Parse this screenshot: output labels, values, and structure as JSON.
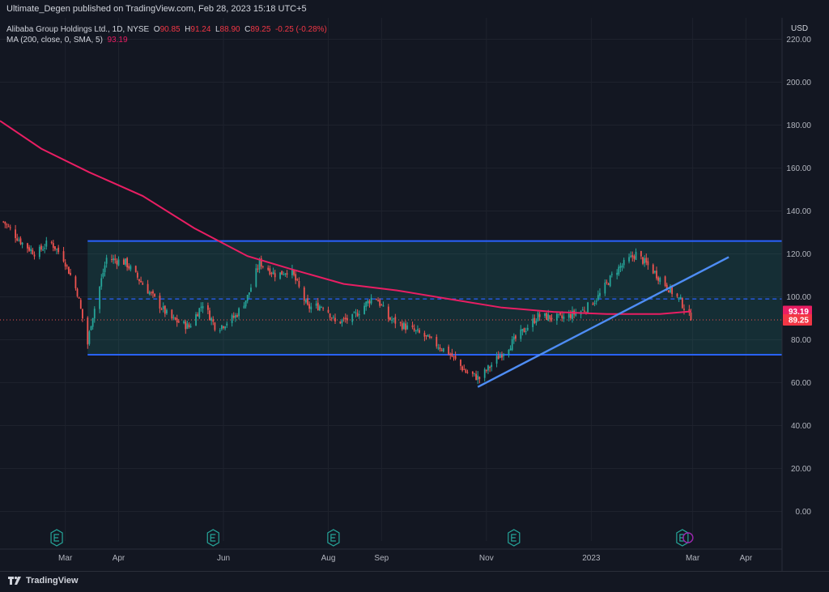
{
  "header": {
    "published": "Ultimate_Degen published on TradingView.com, Feb 28, 2023 15:18 UTC+5"
  },
  "legend": {
    "symbol": "Alibaba Group Holdings Ltd., 1D, NYSE",
    "o_label": "O",
    "o_value": "90.85",
    "h_label": "H",
    "h_value": "91.24",
    "l_label": "L",
    "l_value": "88.90",
    "c_label": "C",
    "c_value": "89.25",
    "change": "-0.25 (-0.28%)",
    "ma_label": "MA (200, close, 0, SMA, 5)",
    "ma_value": "93.19"
  },
  "price_axis": {
    "currency": "USD"
  },
  "price_badges": {
    "ma": "93.19",
    "last": "89.25"
  },
  "footer": {
    "brand": "TradingView"
  },
  "colors": {
    "background": "#131722",
    "up": "#26a69a",
    "down": "#ef5350",
    "ma": "#e91e63",
    "channel": "#2962ff",
    "trendline": "#4e8df5"
  },
  "chart_data": {
    "type": "candlestick",
    "y_range": [
      -10,
      230
    ],
    "y_ticks": [
      "0.00",
      "20.00",
      "40.00",
      "60.00",
      "80.00",
      "100.00",
      "120.00",
      "140.00",
      "160.00",
      "180.00",
      "200.00",
      "220.00"
    ],
    "x_range": [
      "2022-01-22",
      "2023-04-22"
    ],
    "x_ticks": [
      {
        "label": "Mar",
        "date": "2022-03-01"
      },
      {
        "label": "Apr",
        "date": "2022-04-01"
      },
      {
        "label": "Jun",
        "date": "2022-06-01"
      },
      {
        "label": "Aug",
        "date": "2022-08-01"
      },
      {
        "label": "Sep",
        "date": "2022-09-01"
      },
      {
        "label": "Nov",
        "date": "2022-11-01"
      },
      {
        "label": "2023",
        "date": "2023-01-01"
      },
      {
        "label": "Mar",
        "date": "2023-03-01"
      },
      {
        "label": "Apr",
        "date": "2023-04-01"
      }
    ],
    "price_keypoints": [
      [
        "2022-01-24",
        135
      ],
      [
        "2022-02-04",
        125
      ],
      [
        "2022-02-12",
        120
      ],
      [
        "2022-02-20",
        126
      ],
      [
        "2022-02-28",
        118
      ],
      [
        "2022-03-08",
        102
      ],
      [
        "2022-03-14",
        78
      ],
      [
        "2022-03-16",
        88
      ],
      [
        "2022-03-25",
        118
      ],
      [
        "2022-04-05",
        116
      ],
      [
        "2022-04-20",
        101
      ],
      [
        "2022-05-01",
        90
      ],
      [
        "2022-05-12",
        86
      ],
      [
        "2022-05-20",
        97
      ],
      [
        "2022-05-28",
        85
      ],
      [
        "2022-06-08",
        91
      ],
      [
        "2022-06-15",
        100
      ],
      [
        "2022-06-22",
        116
      ],
      [
        "2022-07-02",
        110
      ],
      [
        "2022-07-10",
        113
      ],
      [
        "2022-07-20",
        95
      ],
      [
        "2022-07-30",
        96
      ],
      [
        "2022-08-05",
        88
      ],
      [
        "2022-08-15",
        90
      ],
      [
        "2022-08-28",
        101
      ],
      [
        "2022-09-05",
        90
      ],
      [
        "2022-09-15",
        86
      ],
      [
        "2022-09-25",
        82
      ],
      [
        "2022-10-10",
        74
      ],
      [
        "2022-10-20",
        65
      ],
      [
        "2022-10-28",
        62
      ],
      [
        "2022-11-08",
        72
      ],
      [
        "2022-11-20",
        82
      ],
      [
        "2022-12-01",
        91
      ],
      [
        "2022-12-15",
        90
      ],
      [
        "2022-12-28",
        94
      ],
      [
        "2023-01-05",
        100
      ],
      [
        "2023-01-15",
        112
      ],
      [
        "2023-01-27",
        120
      ],
      [
        "2023-02-05",
        113
      ],
      [
        "2023-02-15",
        104
      ],
      [
        "2023-02-22",
        98
      ],
      [
        "2023-02-28",
        89.25
      ]
    ],
    "ma200_keypoints": [
      [
        "2022-01-22",
        182
      ],
      [
        "2022-02-15",
        169
      ],
      [
        "2022-03-15",
        158
      ],
      [
        "2022-04-15",
        147
      ],
      [
        "2022-05-15",
        132
      ],
      [
        "2022-06-15",
        119
      ],
      [
        "2022-07-10",
        113
      ],
      [
        "2022-08-10",
        106
      ],
      [
        "2022-09-10",
        103
      ],
      [
        "2022-10-10",
        99
      ],
      [
        "2022-11-10",
        95
      ],
      [
        "2022-12-10",
        93
      ],
      [
        "2023-01-10",
        92
      ],
      [
        "2023-02-10",
        92
      ],
      [
        "2023-02-28",
        93.19
      ]
    ],
    "channel": {
      "start": "2022-03-14",
      "end_at_axis": true,
      "top": 126,
      "bottom": 73,
      "mid": 99
    },
    "trendline": {
      "from": [
        "2022-10-27",
        58
      ],
      "to": [
        "2023-03-22",
        118.5
      ]
    },
    "earnings_dates": [
      "2022-02-24",
      "2022-05-26",
      "2022-08-04",
      "2022-11-17",
      "2023-02-23"
    ],
    "last_close": 89.25,
    "ma_last": 93.19
  }
}
